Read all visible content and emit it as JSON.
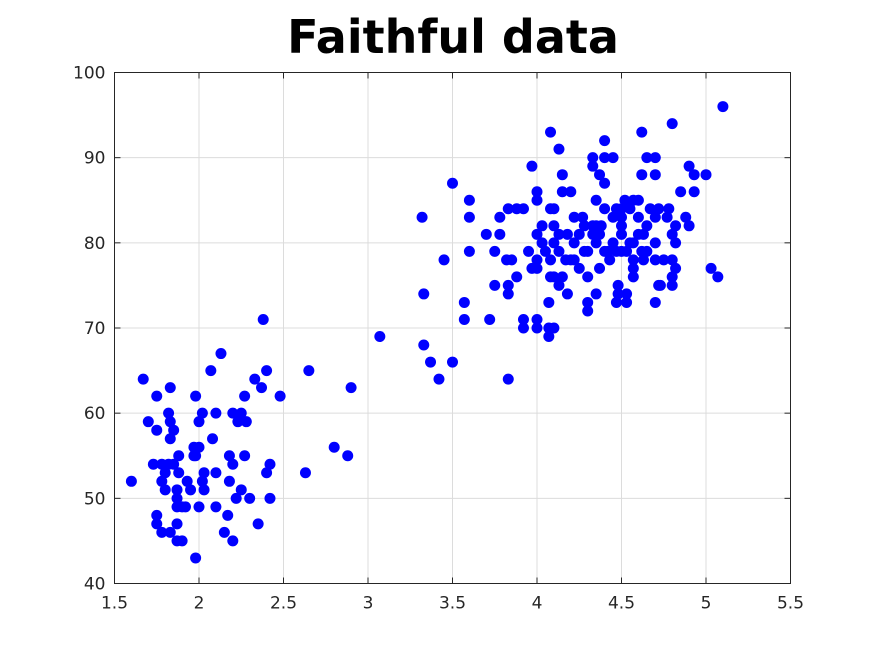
{
  "chart_data": {
    "type": "scatter",
    "title": "Faithful data",
    "xlabel": "",
    "ylabel": "",
    "xlim": [
      1.5,
      5.5
    ],
    "ylim": [
      40,
      100
    ],
    "xticks": [
      1.5,
      2,
      2.5,
      3,
      3.5,
      4,
      4.5,
      5,
      5.5
    ],
    "yticks": [
      40,
      50,
      60,
      70,
      80,
      90,
      100
    ],
    "xtick_labels": [
      "1.5",
      "2",
      "2.5",
      "3",
      "3.5",
      "4",
      "4.5",
      "5",
      "5.5"
    ],
    "ytick_labels": [
      "40",
      "50",
      "60",
      "70",
      "80",
      "90",
      "100"
    ],
    "grid": true,
    "marker_color": "#0000ff",
    "points": [
      [
        1.6,
        52
      ],
      [
        1.67,
        64
      ],
      [
        1.7,
        59
      ],
      [
        1.73,
        54
      ],
      [
        1.75,
        62
      ],
      [
        1.75,
        58
      ],
      [
        1.75,
        48
      ],
      [
        1.75,
        47
      ],
      [
        1.78,
        46
      ],
      [
        1.78,
        52
      ],
      [
        1.78,
        54
      ],
      [
        1.8,
        51
      ],
      [
        1.8,
        53
      ],
      [
        1.82,
        60
      ],
      [
        1.82,
        54
      ],
      [
        1.83,
        59
      ],
      [
        1.83,
        63
      ],
      [
        1.83,
        57
      ],
      [
        1.83,
        46
      ],
      [
        1.85,
        58
      ],
      [
        1.85,
        54
      ],
      [
        1.87,
        51
      ],
      [
        1.87,
        50
      ],
      [
        1.87,
        49
      ],
      [
        1.87,
        47
      ],
      [
        1.87,
        45
      ],
      [
        1.88,
        55
      ],
      [
        1.88,
        53
      ],
      [
        1.9,
        45
      ],
      [
        1.9,
        49
      ],
      [
        1.92,
        49
      ],
      [
        1.93,
        52
      ],
      [
        1.95,
        51
      ],
      [
        1.97,
        56
      ],
      [
        1.97,
        55
      ],
      [
        1.98,
        55
      ],
      [
        1.98,
        43
      ],
      [
        1.98,
        62
      ],
      [
        2.0,
        59
      ],
      [
        2.0,
        56
      ],
      [
        2.0,
        49
      ],
      [
        2.02,
        60
      ],
      [
        2.02,
        52
      ],
      [
        2.03,
        53
      ],
      [
        2.03,
        51
      ],
      [
        2.07,
        65
      ],
      [
        2.08,
        57
      ],
      [
        2.1,
        60
      ],
      [
        2.1,
        53
      ],
      [
        2.1,
        49
      ],
      [
        2.13,
        67
      ],
      [
        2.15,
        46
      ],
      [
        2.17,
        48
      ],
      [
        2.18,
        55
      ],
      [
        2.18,
        52
      ],
      [
        2.2,
        60
      ],
      [
        2.2,
        54
      ],
      [
        2.2,
        45
      ],
      [
        2.22,
        50
      ],
      [
        2.23,
        59
      ],
      [
        2.25,
        60
      ],
      [
        2.25,
        51
      ],
      [
        2.27,
        62
      ],
      [
        2.27,
        55
      ],
      [
        2.28,
        59
      ],
      [
        2.3,
        50
      ],
      [
        2.33,
        64
      ],
      [
        2.35,
        47
      ],
      [
        2.37,
        63
      ],
      [
        2.38,
        71
      ],
      [
        2.4,
        65
      ],
      [
        2.4,
        53
      ],
      [
        2.42,
        54
      ],
      [
        2.42,
        50
      ],
      [
        2.48,
        62
      ],
      [
        2.63,
        53
      ],
      [
        2.65,
        65
      ],
      [
        2.8,
        56
      ],
      [
        2.88,
        55
      ],
      [
        2.9,
        63
      ],
      [
        3.07,
        69
      ],
      [
        3.32,
        83
      ],
      [
        3.33,
        74
      ],
      [
        3.33,
        68
      ],
      [
        3.37,
        66
      ],
      [
        3.42,
        64
      ],
      [
        3.45,
        78
      ],
      [
        3.5,
        87
      ],
      [
        3.5,
        66
      ],
      [
        3.57,
        73
      ],
      [
        3.57,
        71
      ],
      [
        3.6,
        85
      ],
      [
        3.6,
        83
      ],
      [
        3.6,
        79
      ],
      [
        3.7,
        81
      ],
      [
        3.72,
        71
      ],
      [
        3.75,
        79
      ],
      [
        3.75,
        75
      ],
      [
        3.78,
        83
      ],
      [
        3.78,
        81
      ],
      [
        3.82,
        78
      ],
      [
        3.83,
        84
      ],
      [
        3.83,
        75
      ],
      [
        3.83,
        74
      ],
      [
        3.83,
        64
      ],
      [
        3.85,
        78
      ],
      [
        3.88,
        84
      ],
      [
        3.88,
        76
      ],
      [
        3.92,
        84
      ],
      [
        3.92,
        71
      ],
      [
        3.92,
        70
      ],
      [
        3.95,
        79
      ],
      [
        3.97,
        77
      ],
      [
        3.97,
        89
      ],
      [
        4.0,
        86
      ],
      [
        4.0,
        85
      ],
      [
        4.0,
        81
      ],
      [
        4.0,
        78
      ],
      [
        4.0,
        77
      ],
      [
        4.0,
        71
      ],
      [
        4.0,
        70
      ],
      [
        4.03,
        82
      ],
      [
        4.03,
        80
      ],
      [
        4.05,
        79
      ],
      [
        4.07,
        73
      ],
      [
        4.07,
        70
      ],
      [
        4.07,
        69
      ],
      [
        4.08,
        93
      ],
      [
        4.08,
        84
      ],
      [
        4.08,
        78
      ],
      [
        4.08,
        76
      ],
      [
        4.1,
        84
      ],
      [
        4.1,
        82
      ],
      [
        4.1,
        80
      ],
      [
        4.1,
        76
      ],
      [
        4.1,
        70
      ],
      [
        4.13,
        91
      ],
      [
        4.13,
        81
      ],
      [
        4.13,
        79
      ],
      [
        4.13,
        75
      ],
      [
        4.15,
        88
      ],
      [
        4.15,
        86
      ],
      [
        4.15,
        76
      ],
      [
        4.17,
        78
      ],
      [
        4.18,
        81
      ],
      [
        4.18,
        74
      ],
      [
        4.2,
        86
      ],
      [
        4.2,
        78
      ],
      [
        4.22,
        83
      ],
      [
        4.22,
        80
      ],
      [
        4.22,
        78
      ],
      [
        4.25,
        81
      ],
      [
        4.25,
        77
      ],
      [
        4.27,
        83
      ],
      [
        4.28,
        82
      ],
      [
        4.28,
        79
      ],
      [
        4.3,
        79
      ],
      [
        4.3,
        76
      ],
      [
        4.3,
        73
      ],
      [
        4.3,
        72
      ],
      [
        4.33,
        90
      ],
      [
        4.33,
        89
      ],
      [
        4.33,
        82
      ],
      [
        4.33,
        81
      ],
      [
        4.35,
        85
      ],
      [
        4.35,
        82
      ],
      [
        4.35,
        80
      ],
      [
        4.35,
        74
      ],
      [
        4.37,
        88
      ],
      [
        4.37,
        81
      ],
      [
        4.37,
        77
      ],
      [
        4.38,
        82
      ],
      [
        4.4,
        92
      ],
      [
        4.4,
        90
      ],
      [
        4.4,
        87
      ],
      [
        4.4,
        84
      ],
      [
        4.4,
        79
      ],
      [
        4.42,
        79
      ],
      [
        4.43,
        78
      ],
      [
        4.45,
        90
      ],
      [
        4.45,
        83
      ],
      [
        4.45,
        80
      ],
      [
        4.47,
        84
      ],
      [
        4.47,
        79
      ],
      [
        4.47,
        73
      ],
      [
        4.48,
        75
      ],
      [
        4.48,
        74
      ],
      [
        4.5,
        84
      ],
      [
        4.5,
        83
      ],
      [
        4.5,
        82
      ],
      [
        4.5,
        81
      ],
      [
        4.5,
        79
      ],
      [
        4.52,
        85
      ],
      [
        4.53,
        79
      ],
      [
        4.53,
        73
      ],
      [
        4.53,
        74
      ],
      [
        4.55,
        80
      ],
      [
        4.55,
        84
      ],
      [
        4.57,
        85
      ],
      [
        4.57,
        80
      ],
      [
        4.57,
        78
      ],
      [
        4.57,
        77
      ],
      [
        4.57,
        76
      ],
      [
        4.6,
        85
      ],
      [
        4.6,
        83
      ],
      [
        4.6,
        81
      ],
      [
        4.62,
        93
      ],
      [
        4.62,
        88
      ],
      [
        4.62,
        79
      ],
      [
        4.63,
        81
      ],
      [
        4.63,
        78
      ],
      [
        4.65,
        90
      ],
      [
        4.65,
        82
      ],
      [
        4.65,
        79
      ],
      [
        4.67,
        84
      ],
      [
        4.7,
        83
      ],
      [
        4.7,
        90
      ],
      [
        4.7,
        88
      ],
      [
        4.7,
        80
      ],
      [
        4.7,
        78
      ],
      [
        4.7,
        73
      ],
      [
        4.72,
        84
      ],
      [
        4.72,
        75
      ],
      [
        4.73,
        75
      ],
      [
        4.75,
        78
      ],
      [
        4.77,
        83
      ],
      [
        4.78,
        84
      ],
      [
        4.8,
        94
      ],
      [
        4.8,
        81
      ],
      [
        4.8,
        78
      ],
      [
        4.8,
        76
      ],
      [
        4.8,
        75
      ],
      [
        4.82,
        82
      ],
      [
        4.82,
        80
      ],
      [
        4.82,
        77
      ],
      [
        4.85,
        86
      ],
      [
        4.88,
        83
      ],
      [
        4.9,
        89
      ],
      [
        4.9,
        82
      ],
      [
        4.93,
        88
      ],
      [
        4.93,
        86
      ],
      [
        5.0,
        88
      ],
      [
        5.03,
        77
      ],
      [
        5.07,
        76
      ],
      [
        5.1,
        96
      ]
    ]
  }
}
